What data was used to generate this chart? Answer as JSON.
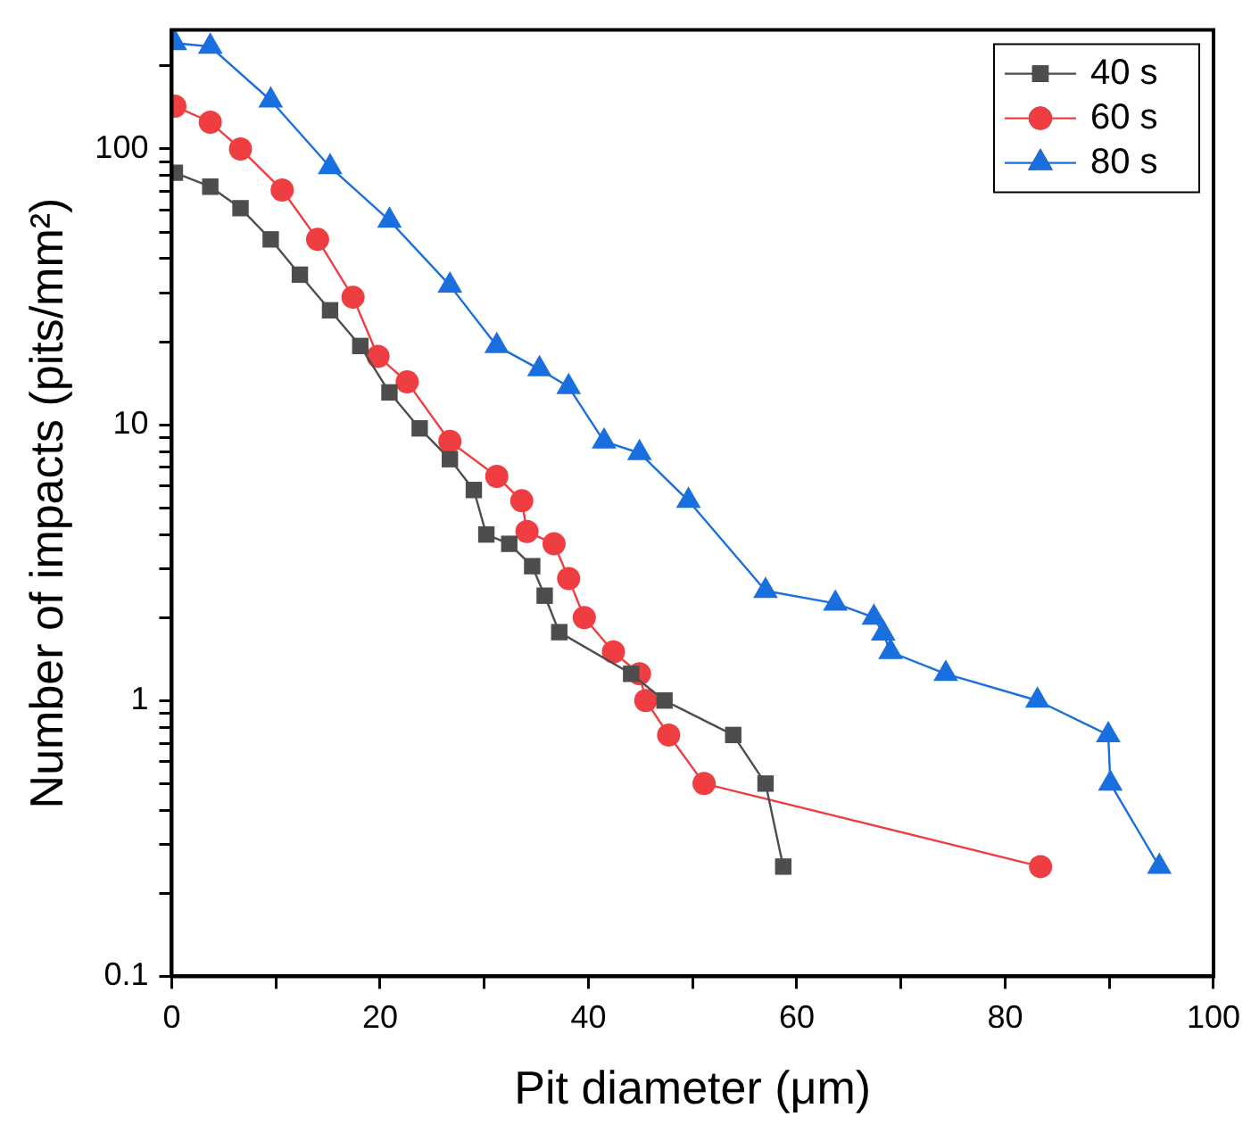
{
  "chart_data": {
    "type": "line",
    "xlabel": "Pit diameter (μm)",
    "ylabel": "Number of impacts (pits/mm²)",
    "log": "y",
    "xlim": [
      0,
      100
    ],
    "xticks": [
      0,
      {
        "value": 10,
        "label": null
      },
      20,
      {
        "value": 30,
        "label": null
      },
      40,
      {
        "value": 50,
        "label": null
      },
      60,
      {
        "value": 70,
        "label": null
      },
      80,
      {
        "value": 90,
        "label": null
      },
      100
    ],
    "ylim": [
      0.1,
      270
    ],
    "yticks": [
      0.1,
      {
        "value": 0.2,
        "label": null
      },
      {
        "value": 0.3,
        "label": null
      },
      {
        "value": 0.4,
        "label": null
      },
      {
        "value": 0.5,
        "label": null
      },
      {
        "value": 0.6,
        "label": null
      },
      {
        "value": 0.7,
        "label": null
      },
      {
        "value": 0.8,
        "label": null
      },
      {
        "value": 0.9,
        "label": null
      },
      1,
      {
        "value": 2,
        "label": null
      },
      {
        "value": 3,
        "label": null
      },
      {
        "value": 4,
        "label": null
      },
      {
        "value": 5,
        "label": null
      },
      {
        "value": 6,
        "label": null
      },
      {
        "value": 7,
        "label": null
      },
      {
        "value": 8,
        "label": null
      },
      {
        "value": 9,
        "label": null
      },
      10,
      {
        "value": 20,
        "label": null
      },
      {
        "value": 30,
        "label": null
      },
      {
        "value": 40,
        "label": null
      },
      {
        "value": 50,
        "label": null
      },
      {
        "value": 60,
        "label": null
      },
      {
        "value": 70,
        "label": null
      },
      {
        "value": 80,
        "label": null
      },
      {
        "value": 90,
        "label": null
      },
      100,
      {
        "value": 200,
        "label": null
      }
    ],
    "grid": false,
    "legend": "top right",
    "line_style": "solid",
    "series": [
      {
        "name": "40 s",
        "color": "#4d4d4d",
        "marker": "square",
        "x": [
          0.3,
          3.7,
          6.6,
          9.5,
          12.3,
          15.2,
          18.1,
          20.9,
          23.8,
          26.7,
          29,
          30.2,
          32.4,
          34.6,
          35.8,
          37.2,
          44.1,
          47.3,
          53.9,
          57,
          58.7
        ],
        "values": [
          82,
          73,
          61,
          47,
          35,
          26,
          19.3,
          13.1,
          9.7,
          7.5,
          5.8,
          4,
          3.7,
          3.07,
          2.4,
          1.77,
          1.25,
          1,
          0.75,
          0.5,
          0.25
        ]
      },
      {
        "name": "60 s",
        "color": "#ef3e42",
        "marker": "circle",
        "x": [
          0.3,
          3.7,
          6.6,
          10.6,
          14,
          17.4,
          19.8,
          22.6,
          26.7,
          31.2,
          33.6,
          34.1,
          36.7,
          38.1,
          39.6,
          42.4,
          44.9,
          45.5,
          47.7,
          51.1,
          83.4
        ],
        "values": [
          143,
          125,
          100,
          71,
          47,
          29,
          17.7,
          14.3,
          8.7,
          6.5,
          5.3,
          4.1,
          3.7,
          2.77,
          2,
          1.5,
          1.25,
          1,
          0.75,
          0.5,
          0.25
        ]
      },
      {
        "name": "80 s",
        "color": "#1a6fdf",
        "marker": "triangle",
        "x": [
          0.3,
          3.7,
          9.5,
          15.2,
          20.9,
          26.7,
          31.2,
          35.3,
          38.1,
          41.5,
          44.9,
          49.6,
          57,
          63.7,
          67.4,
          68.3,
          69,
          74.3,
          83.1,
          89.9,
          90.1,
          94.8
        ],
        "values": [
          242,
          235,
          150,
          86,
          55,
          32,
          19.3,
          15.9,
          13.7,
          8.7,
          7.9,
          5.3,
          2.5,
          2.25,
          2,
          1.75,
          1.5,
          1.25,
          1,
          0.75,
          0.5,
          0.25
        ]
      }
    ]
  }
}
